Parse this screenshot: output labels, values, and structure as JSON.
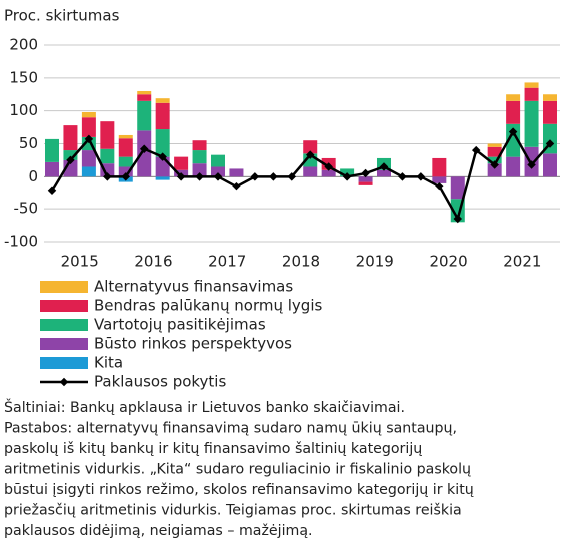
{
  "chart_data": {
    "type": "stacked-bar-line",
    "y_label": "Proc. skirtumas",
    "years": [
      "2015",
      "2016",
      "2017",
      "2018",
      "2019",
      "2020",
      "2021"
    ],
    "ylim": [
      -100,
      200
    ],
    "yticks": [
      -100,
      -50,
      0,
      50,
      100,
      150,
      200
    ],
    "series": [
      {
        "name": "Alternatyvus finansavimas",
        "color": "#f5b531",
        "values": [
          0,
          0,
          8,
          0,
          5,
          5,
          7,
          0,
          0,
          0,
          0,
          0,
          0,
          0,
          0,
          0,
          0,
          0,
          0,
          0,
          0,
          0,
          0,
          0,
          5,
          10,
          8,
          10
        ]
      },
      {
        "name": "Bendras palūkanų normų lygis",
        "color": "#e0204f",
        "values": [
          0,
          38,
          30,
          42,
          28,
          10,
          40,
          20,
          15,
          0,
          0,
          0,
          0,
          0,
          20,
          18,
          0,
          -5,
          0,
          0,
          0,
          28,
          0,
          0,
          15,
          35,
          20,
          35
        ]
      },
      {
        "name": "Vartotojų pasitikėjimas",
        "color": "#1db37a",
        "values": [
          35,
          15,
          20,
          22,
          15,
          45,
          42,
          0,
          20,
          18,
          0,
          0,
          0,
          0,
          20,
          0,
          12,
          0,
          18,
          0,
          0,
          0,
          -35,
          0,
          10,
          50,
          70,
          45
        ]
      },
      {
        "name": "Būsto rinkos perspektyvos",
        "color": "#8e44a8",
        "values": [
          22,
          25,
          25,
          20,
          15,
          70,
          30,
          10,
          20,
          15,
          12,
          0,
          0,
          0,
          15,
          10,
          0,
          -8,
          10,
          0,
          0,
          -10,
          -35,
          0,
          20,
          30,
          45,
          35
        ]
      },
      {
        "name": "Kita",
        "color": "#1c9ad6",
        "values": [
          0,
          0,
          15,
          0,
          -8,
          0,
          -5,
          0,
          0,
          0,
          0,
          0,
          0,
          0,
          0,
          0,
          0,
          0,
          0,
          0,
          0,
          0,
          0,
          0,
          0,
          0,
          0,
          0
        ]
      },
      {
        "name": "Paklausos pokytis",
        "color": "#000000",
        "kind": "line",
        "values": [
          -22,
          25,
          57,
          0,
          0,
          42,
          30,
          0,
          0,
          0,
          -15,
          0,
          0,
          0,
          33,
          15,
          0,
          5,
          15,
          0,
          0,
          -15,
          -65,
          40,
          18,
          68,
          18,
          50
        ]
      }
    ]
  },
  "notes": [
    "Šaltiniai: Bankų apklausa ir Lietuvos banko skaičiavimai.",
    "Pastabos: alternatyvų finansavimą sudaro namų ūkių santaupų,",
    "paskolų iš kitų bankų ir kitų finansavimo šaltinių kategorijų",
    "aritmetinis vidurkis. „Kita“ sudaro reguliacinio ir fiskalinio paskolų",
    "būstui įsigyti rinkos režimo, skolos refinansavimo kategorijų ir kitų",
    "priežasčių aritmetinis vidurkis. Teigiamas proc. skirtumas reiškia",
    "paklausos didėjimą, neigiamas – mažėjimą."
  ]
}
